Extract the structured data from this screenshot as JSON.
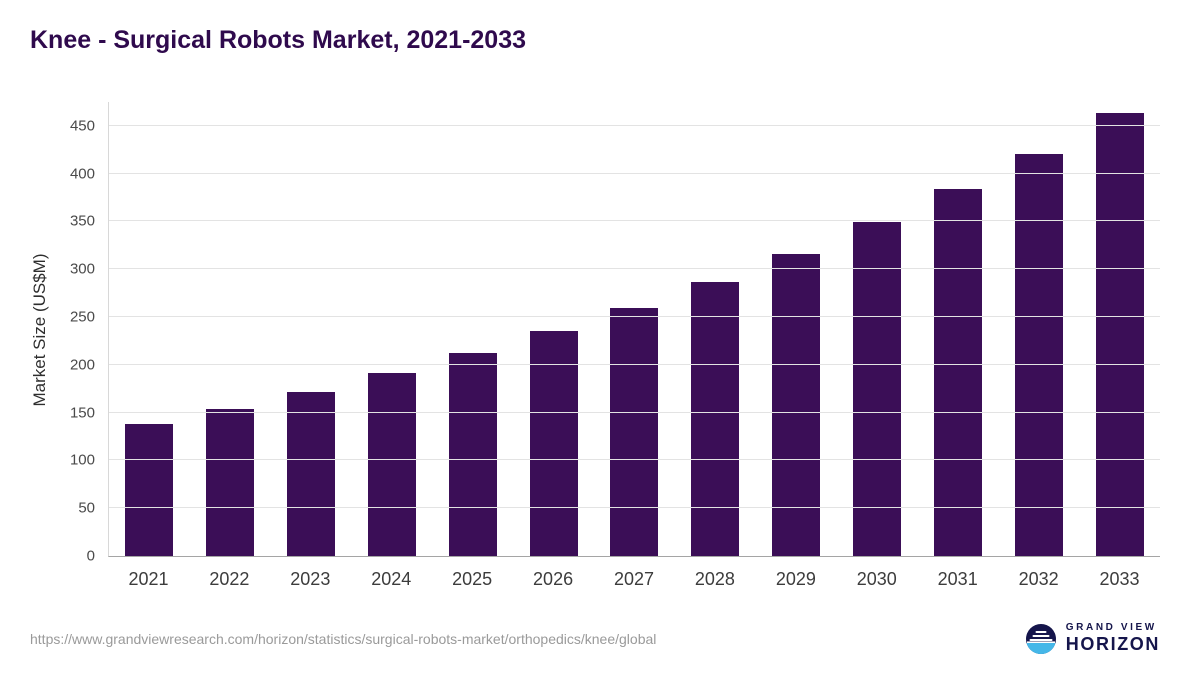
{
  "header": {
    "title": "Knee - Surgical Robots Market, 2021-2033"
  },
  "chart_data": {
    "type": "bar",
    "title": "Knee - Surgical Robots Market, 2021-2033",
    "categories": [
      "2021",
      "2022",
      "2023",
      "2024",
      "2025",
      "2026",
      "2027",
      "2028",
      "2029",
      "2030",
      "2031",
      "2032",
      "2033"
    ],
    "values": [
      138,
      154,
      172,
      191,
      212,
      235,
      259,
      287,
      316,
      349,
      384,
      421,
      463
    ],
    "xlabel": "",
    "ylabel": "Market Size (US$M)",
    "ylim": [
      0,
      475
    ],
    "yticks": [
      0,
      50,
      100,
      150,
      200,
      250,
      300,
      350,
      400,
      450
    ],
    "grid": true,
    "legend_position": "none",
    "bar_color": "#3b0e57"
  },
  "footer": {
    "source_url": "https://www.grandviewresearch.com/horizon/statistics/surgical-robots-market/orthopedics/knee/global",
    "logo": {
      "line1": "GRAND VIEW",
      "line2": "HORIZON"
    }
  },
  "colors": {
    "title_text": "#2f0a4d",
    "bar": "#3b0e57",
    "grid_line": "#e3e3e3",
    "axis_text": "#4a4a4a",
    "url_text": "#9a9a9a",
    "logo_navy": "#15154b",
    "logo_blue": "#45b7e8"
  }
}
